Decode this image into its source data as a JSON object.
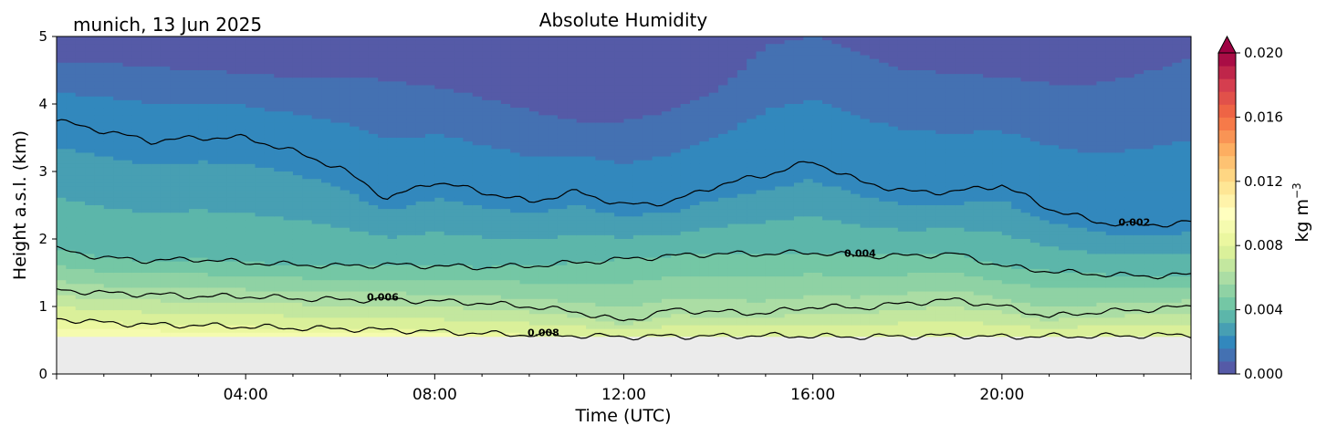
{
  "chart_data": {
    "type": "heatmap",
    "title": "Absolute Humidity",
    "subtitle": "munich, 13 Jun 2025",
    "xlabel": "Time (UTC)",
    "ylabel": "Height a.s.l. (km)",
    "xlim": [
      "00:00",
      "24:00"
    ],
    "ylim": [
      0,
      5
    ],
    "x_ticks": [
      "04:00",
      "08:00",
      "12:00",
      "16:00",
      "20:00"
    ],
    "x_tick_hours": [
      4,
      8,
      12,
      16,
      20
    ],
    "y_ticks": [
      0,
      1,
      2,
      3,
      4,
      5
    ],
    "colorbar": {
      "label": "kg m",
      "label_exponent": "−3",
      "ticks": [
        "0.000",
        "0.004",
        "0.008",
        "0.012",
        "0.016",
        "0.020"
      ],
      "tick_values": [
        0,
        0.004,
        0.008,
        0.012,
        0.016,
        0.02
      ],
      "range": [
        0,
        0.02
      ],
      "extend": "max",
      "colormap": "Spectral_r"
    },
    "ground_level_km": 0.55,
    "time_hours": [
      0,
      1,
      2,
      3,
      4,
      5,
      6,
      7,
      8,
      9,
      10,
      11,
      12,
      13,
      14,
      15,
      16,
      17,
      18,
      19,
      20,
      21,
      22,
      23,
      24
    ],
    "contours": [
      {
        "level": 0.002,
        "label": "0.002",
        "label_hour": 22.8,
        "height_km": [
          3.75,
          3.6,
          3.45,
          3.5,
          3.5,
          3.3,
          3.05,
          2.6,
          2.85,
          2.7,
          2.55,
          2.7,
          2.5,
          2.55,
          2.8,
          2.95,
          3.15,
          2.85,
          2.7,
          2.7,
          2.8,
          2.45,
          2.25,
          2.2,
          2.25
        ]
      },
      {
        "level": 0.004,
        "label": "0.004",
        "label_hour": 17.0,
        "height_km": [
          1.85,
          1.72,
          1.68,
          1.7,
          1.65,
          1.62,
          1.6,
          1.62,
          1.6,
          1.58,
          1.6,
          1.65,
          1.7,
          1.75,
          1.78,
          1.78,
          1.8,
          1.75,
          1.75,
          1.78,
          1.6,
          1.52,
          1.48,
          1.45,
          1.47
        ]
      },
      {
        "level": 0.006,
        "label": "0.006",
        "label_hour": 6.9,
        "height_km": [
          1.25,
          1.2,
          1.18,
          1.15,
          1.15,
          1.12,
          1.1,
          1.1,
          1.08,
          1.05,
          1.0,
          0.92,
          0.78,
          0.95,
          0.92,
          0.9,
          1.0,
          0.98,
          1.05,
          1.1,
          1.0,
          0.85,
          0.92,
          0.95,
          1.0
        ]
      },
      {
        "level": 0.008,
        "label": "0.008",
        "label_hour": 10.3,
        "height_km": [
          0.82,
          0.76,
          0.73,
          0.72,
          0.7,
          0.68,
          0.67,
          0.65,
          0.63,
          0.6,
          0.58,
          0.57,
          0.55,
          0.56,
          0.56,
          0.57,
          0.56,
          0.55,
          0.56,
          0.57,
          0.55,
          0.56,
          0.56,
          0.57,
          0.58
        ]
      }
    ],
    "upper_band_bottom_km": [
      4.6,
      4.6,
      4.55,
      4.5,
      4.45,
      4.4,
      4.4,
      4.35,
      4.25,
      4.1,
      3.9,
      3.75,
      3.75,
      3.9,
      4.2,
      4.85,
      5.0,
      4.75,
      4.5,
      4.45,
      4.4,
      4.3,
      4.3,
      4.45,
      4.7
    ],
    "colors": {
      "ground": "#ebebeb",
      "contour": "#000000"
    }
  }
}
